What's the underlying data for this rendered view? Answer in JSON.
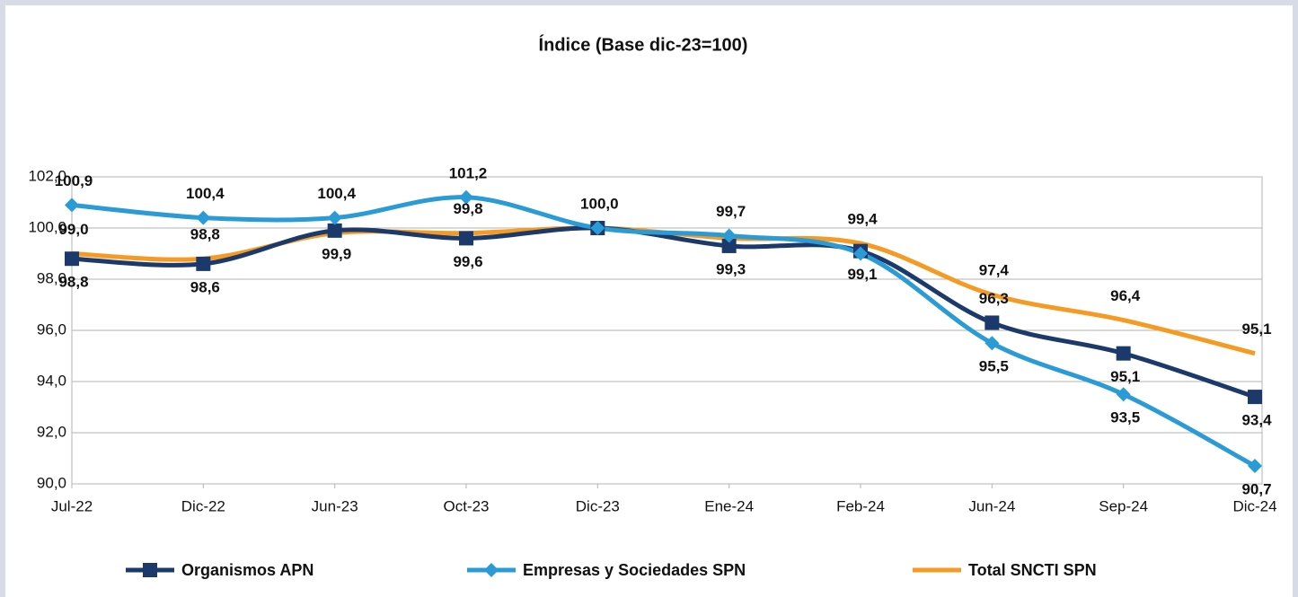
{
  "chart_data": {
    "type": "line",
    "title": "Índice (Base dic-23=100)",
    "categories": [
      "Jul-22",
      "Dic-22",
      "Jun-23",
      "Oct-23",
      "Dic-23",
      "Ene-24",
      "Feb-24",
      "Jun-24",
      "Sep-24",
      "Dic-24"
    ],
    "series": [
      {
        "name": "Organismos APN",
        "color": "#1b3a6b",
        "marker": "square",
        "values": [
          98.8,
          98.6,
          99.9,
          99.6,
          100.0,
          99.3,
          99.1,
          96.3,
          95.1,
          93.4
        ],
        "value_labels": [
          "98,8",
          "98,6",
          "99,9",
          "99,6",
          "100,0",
          "99,3",
          "99,1",
          "96,3",
          "95,1",
          "93,4"
        ]
      },
      {
        "name": "Empresas y Sociedades SPN",
        "color": "#2b9bd6",
        "marker": "diamond",
        "values": [
          100.9,
          100.4,
          100.4,
          101.2,
          100.0,
          99.7,
          99.0,
          95.5,
          93.5,
          90.7
        ],
        "value_labels": [
          "100,9",
          "100,4",
          "100,4",
          "101,2",
          null,
          "99,7",
          null,
          "95,5",
          "93,5",
          "90,7"
        ]
      },
      {
        "name": "Total SNCTI SPN",
        "color": "#f59a23",
        "marker": "none",
        "values": [
          99.0,
          98.8,
          99.8,
          99.8,
          100.0,
          99.6,
          99.4,
          97.4,
          96.4,
          95.1
        ],
        "value_labels": [
          "99,0",
          "98,8",
          null,
          "99,8",
          null,
          null,
          "99,4",
          "97,4",
          "96,4",
          "95,1"
        ]
      }
    ],
    "ylim": [
      90,
      102
    ],
    "yticks": [
      {
        "value": 90,
        "label": "90,0"
      },
      {
        "value": 92,
        "label": "92,0"
      },
      {
        "value": 94,
        "label": "94,0"
      },
      {
        "value": 96,
        "label": "96,0"
      },
      {
        "value": 98,
        "label": "98,0"
      },
      {
        "value": 100,
        "label": "100,0"
      },
      {
        "value": 102,
        "label": "102,0"
      }
    ],
    "grid": true,
    "legend": "bottom"
  }
}
